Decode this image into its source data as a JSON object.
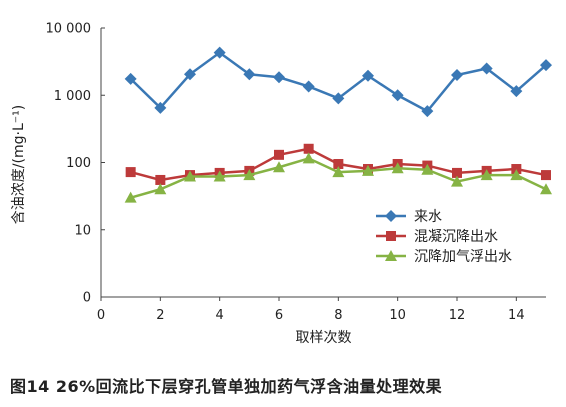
{
  "caption": "图14  26%回流比下层穿孔管单独加药气浮含油量处理效果",
  "chart_data": {
    "type": "line",
    "xlabel": "取样次数",
    "ylabel": "含油浓度/(mg·L⁻¹)",
    "yscale": "log",
    "ylim": [
      1,
      10000
    ],
    "xlim": [
      0,
      15
    ],
    "xticks": [
      0,
      2,
      4,
      6,
      8,
      10,
      12,
      14
    ],
    "yticks": [
      {
        "value": 1,
        "label": "0"
      },
      {
        "value": 10,
        "label": "10"
      },
      {
        "value": 100,
        "label": "100"
      },
      {
        "value": 1000,
        "label": "1 000"
      },
      {
        "value": 10000,
        "label": "10 000"
      }
    ],
    "legend_position": "right-middle",
    "x": [
      1,
      2,
      3,
      4,
      5,
      6,
      7,
      8,
      9,
      10,
      11,
      12,
      13,
      14,
      15
    ],
    "series": [
      {
        "name": "来水",
        "color": "#3a78b5",
        "marker": "diamond",
        "values": [
          1750,
          650,
          2050,
          4300,
          2050,
          1850,
          1350,
          900,
          1950,
          1000,
          580,
          2000,
          2500,
          1150,
          2800
        ]
      },
      {
        "name": "混凝沉降出水",
        "color": "#bd3a3a",
        "marker": "square",
        "values": [
          72,
          55,
          65,
          70,
          75,
          130,
          160,
          95,
          80,
          95,
          90,
          70,
          75,
          80,
          65
        ]
      },
      {
        "name": "沉降加气浮出水",
        "color": "#86b344",
        "marker": "triangle",
        "values": [
          30,
          40,
          62,
          62,
          65,
          85,
          115,
          72,
          75,
          82,
          78,
          52,
          65,
          65,
          40
        ]
      }
    ]
  }
}
